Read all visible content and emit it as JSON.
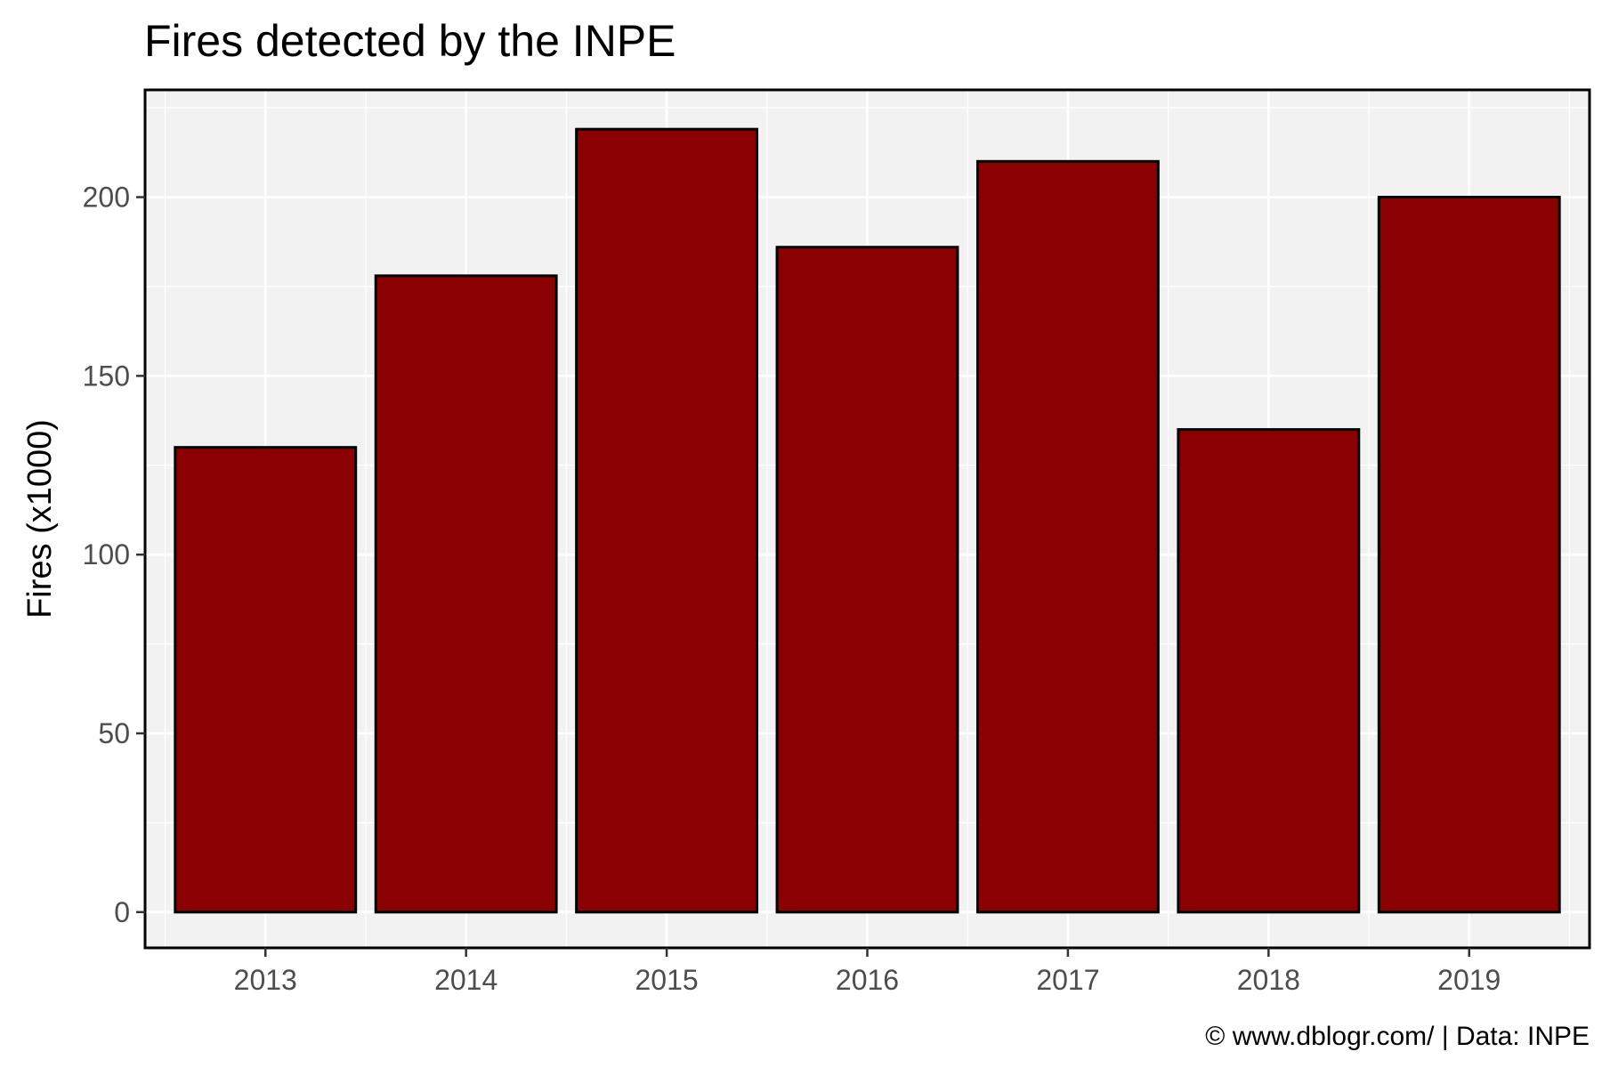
{
  "chart_data": {
    "type": "bar",
    "title": "Fires detected by the INPE",
    "xlabel": "",
    "ylabel": "Fires (x1000)",
    "caption": "© www.dblogr.com/  |  Data: INPE",
    "categories": [
      "2013",
      "2014",
      "2015",
      "2016",
      "2017",
      "2018",
      "2019"
    ],
    "values": [
      130,
      178,
      219,
      186,
      210,
      135,
      200
    ],
    "ylim": [
      -10,
      230
    ],
    "yticks": [
      0,
      50,
      100,
      150,
      200
    ],
    "ytick_labels": [
      "0",
      "50",
      "100",
      "150",
      "200"
    ],
    "grid": true,
    "colors": {
      "bar_fill": "#8B0000",
      "bar_stroke": "#000000",
      "panel_bg": "#F2F2F2",
      "grid": "#FFFFFF",
      "panel_border": "#000000",
      "tick_label": "#4D4D4D"
    }
  }
}
